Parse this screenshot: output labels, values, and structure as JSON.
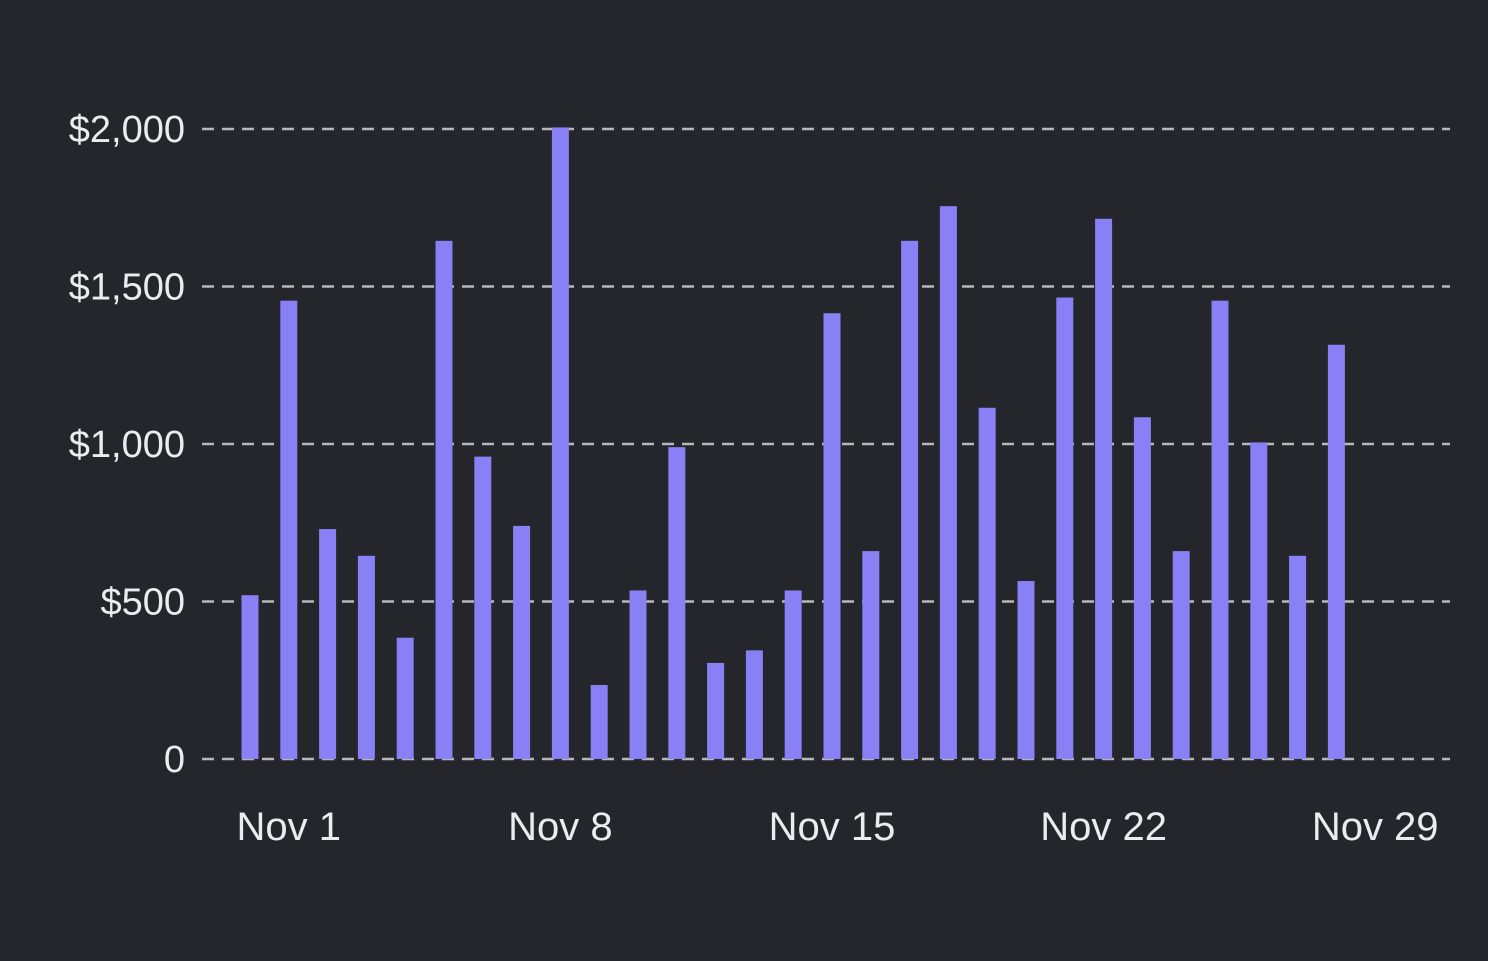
{
  "colors": {
    "background": "#25262b",
    "bar": "#8880f4",
    "grid": "#b8b8bc",
    "tick_text": "#ececef"
  },
  "chart_data": {
    "type": "bar",
    "title": "",
    "xlabel": "",
    "ylabel": "",
    "categories": [
      "Oct 31",
      "Nov 1",
      "Nov 2",
      "Nov 3",
      "Nov 4",
      "Nov 5",
      "Nov 6",
      "Nov 7",
      "Nov 8",
      "Nov 9",
      "Nov 10",
      "Nov 11",
      "Nov 12",
      "Nov 13",
      "Nov 14",
      "Nov 15",
      "Nov 16",
      "Nov 17",
      "Nov 18",
      "Nov 19",
      "Nov 20",
      "Nov 21",
      "Nov 22",
      "Nov 23",
      "Nov 24",
      "Nov 25",
      "Nov 26",
      "Nov 27",
      "Nov 28"
    ],
    "values": [
      520,
      1455,
      730,
      645,
      385,
      1645,
      960,
      740,
      2005,
      235,
      535,
      990,
      305,
      345,
      535,
      1415,
      660,
      1645,
      1755,
      1115,
      565,
      1465,
      1715,
      1085,
      660,
      1455,
      1005,
      645,
      1315
    ],
    "ylim": [
      0,
      2000
    ],
    "y_ticks": [
      0,
      500,
      1000,
      1500,
      2000
    ],
    "y_tick_labels": [
      "0",
      "$500",
      "$1,000",
      "$1,500",
      "$2,000"
    ],
    "x_tick_labels": [
      "Nov 1",
      "Nov 8",
      "Nov 15",
      "Nov 22",
      "Nov 29"
    ],
    "grid": true,
    "grid_style": "dashed",
    "legend": "none"
  }
}
